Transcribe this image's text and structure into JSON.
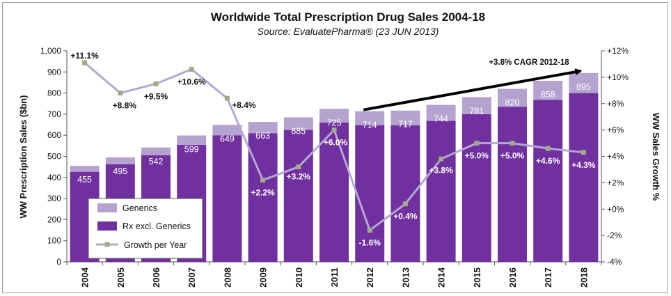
{
  "chart_data": {
    "type": "bar",
    "title": "Worldwide Total Prescription Drug Sales 2004-18",
    "subtitle": "Source: EvaluatePharma® (23 JUN 2013)",
    "ylabel": "WW Prescription Sales ($bn)",
    "y2label": "WW Sales Growth %",
    "ylim": [
      0,
      1000
    ],
    "y2lim": [
      -4,
      12
    ],
    "yticks": [
      "0",
      "100",
      "200",
      "300",
      "400",
      "500",
      "600",
      "700",
      "800",
      "900",
      "1,000"
    ],
    "y2ticks": [
      "-4%",
      "-2%",
      "+0%",
      "+2%",
      "+4%",
      "+6%",
      "+8%",
      "+10%",
      "+12%"
    ],
    "categories": [
      "2004",
      "2005",
      "2006",
      "2007",
      "2008",
      "2009",
      "2010",
      "2011",
      "2012",
      "2013",
      "2014",
      "2015",
      "2016",
      "2017",
      "2018"
    ],
    "totals": [
      455,
      495,
      542,
      599,
      649,
      663,
      685,
      725,
      714,
      717,
      744,
      781,
      820,
      858,
      895
    ],
    "total_labels": [
      "455",
      "495",
      "542",
      "599",
      "649",
      "663",
      "685",
      "725",
      "714",
      "717",
      "744",
      "781",
      "820",
      "858",
      "895"
    ],
    "series": [
      {
        "name": "Rx excl. Generics",
        "values": [
          427,
          463,
          505,
          555,
          600,
          610,
          625,
          660,
          648,
          647,
          668,
          700,
          735,
          768,
          800
        ]
      },
      {
        "name": "Generics",
        "values": [
          28,
          32,
          37,
          44,
          49,
          53,
          60,
          65,
          66,
          70,
          76,
          81,
          85,
          90,
          95
        ]
      }
    ],
    "growth": {
      "name": "Growth per Year",
      "values": [
        11.1,
        8.8,
        9.5,
        10.6,
        8.4,
        2.2,
        3.2,
        6.0,
        -1.6,
        0.4,
        3.8,
        5.0,
        5.0,
        4.6,
        4.3
      ],
      "labels": [
        "+11.1%",
        "+8.8%",
        "+9.5%",
        "+10.6%",
        "+8.4%",
        "+2.2%",
        "+3.2%",
        "+6.0%",
        "-1.6%",
        "+0.4%",
        "+3.8%",
        "+5.0%",
        "+5.0%",
        "+4.6%",
        "+4.3%"
      ]
    },
    "annotation": {
      "text": "+3.8% CAGR 2012-18",
      "from": "2012",
      "to": "2018"
    },
    "legend": {
      "position": "bottom-left",
      "items": [
        "Generics",
        "Rx excl. Generics",
        "Growth per Year"
      ]
    },
    "colors": {
      "rx": "#7030a0",
      "generics": "#b4a2cf",
      "growth_line": "#b4a8d2",
      "growth_marker": "#9eab84",
      "axis": "#555555",
      "text": "#111111"
    }
  }
}
